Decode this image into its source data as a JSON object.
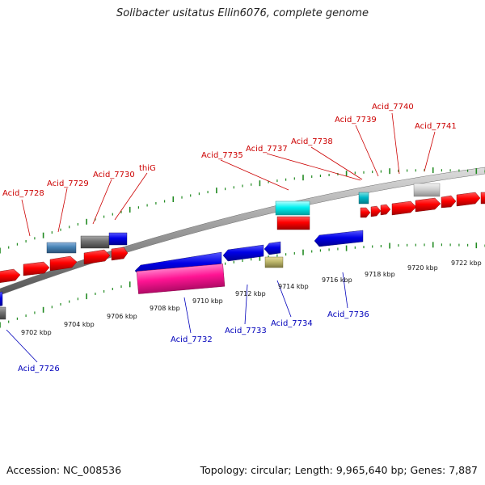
{
  "title": "Solibacter usitatus Ellin6076, complete genome",
  "footer": {
    "accession": "Accession: NC_008536",
    "summary": "Topology: circular; Length: 9,965,640 bp; Genes: 7,887"
  },
  "colors": {
    "backbone": "#999999",
    "forward_gene": "#ff0000",
    "reverse_gene": "#0000ee",
    "tick": "#228b22",
    "forward_label": "#cc0000",
    "reverse_label": "#0000bb"
  },
  "forward_labels": [
    "Acid_7728",
    "Acid_7729",
    "Acid_7730",
    "thiG",
    "Acid_7735",
    "Acid_7737",
    "Acid_7738",
    "Acid_7739",
    "Acid_7740",
    "Acid_7741"
  ],
  "reverse_labels": [
    "Acid_7726",
    "Acid_7732",
    "Acid_7733",
    "Acid_7734",
    "Acid_7736"
  ],
  "scale_labels": [
    "9702 kbp",
    "9704 kbp",
    "9706 kbp",
    "9708 kbp",
    "9710 kbp",
    "9712 kbp",
    "9714 kbp",
    "9716 kbp",
    "9718 kbp",
    "9720 kbp",
    "9722 kbp"
  ]
}
